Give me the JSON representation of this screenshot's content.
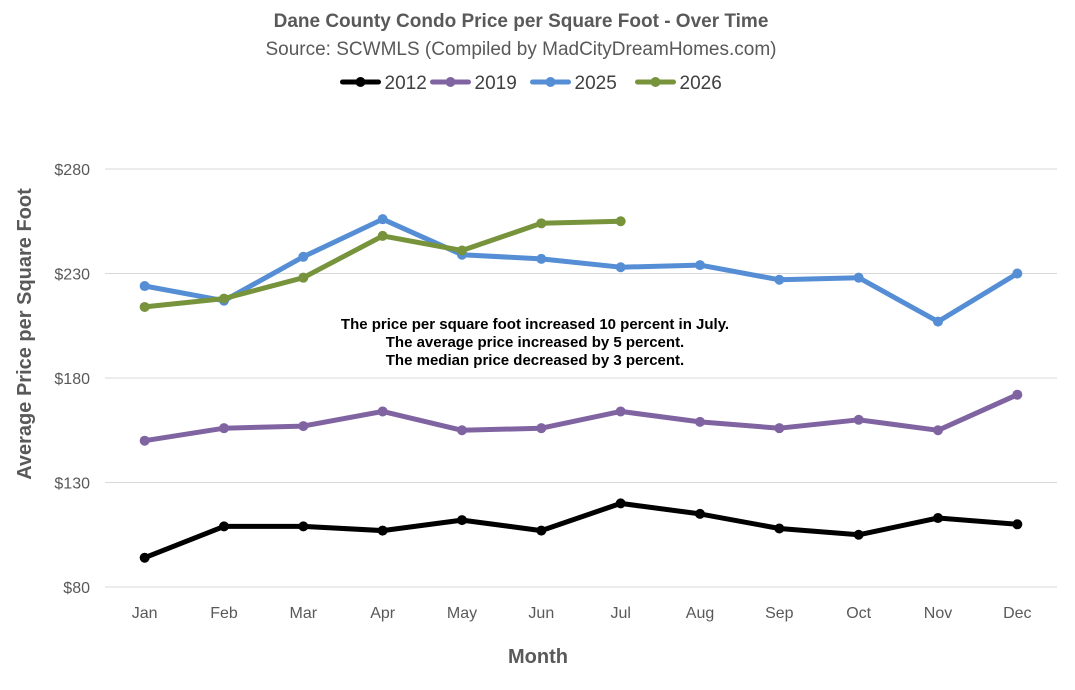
{
  "chart_data": {
    "type": "line",
    "title": "Dane County Condo Price per Square Foot - Over Time",
    "subtitle": "Source: SCWMLS (Compiled by MadCityDreamHomes.com)",
    "xlabel": "Month",
    "ylabel": "Average Price per Square Foot",
    "categories": [
      "Jan",
      "Feb",
      "Mar",
      "Apr",
      "May",
      "Jun",
      "Jul",
      "Aug",
      "Sep",
      "Oct",
      "Nov",
      "Dec"
    ],
    "ylim": [
      80,
      280
    ],
    "yticks": [
      80,
      130,
      180,
      230,
      280
    ],
    "ytick_labels": [
      "$80",
      "$130",
      "$180",
      "$230",
      "$280"
    ],
    "grid": true,
    "legend_position": "top",
    "series": [
      {
        "name": "2012",
        "color": "#000000",
        "values": [
          94,
          109,
          109,
          107,
          112,
          107,
          120,
          115,
          108,
          105,
          113,
          110
        ]
      },
      {
        "name": "2019",
        "color": "#8064a2",
        "values": [
          150,
          156,
          157,
          164,
          155,
          156,
          164,
          159,
          156,
          160,
          155,
          172
        ]
      },
      {
        "name": "2025",
        "color": "#558ed5",
        "values": [
          224,
          217,
          238,
          256,
          239,
          237,
          233,
          234,
          227,
          228,
          207,
          230
        ]
      },
      {
        "name": "2026",
        "color": "#77933c",
        "values": [
          214,
          218,
          228,
          248,
          241,
          254,
          255,
          null,
          null,
          null,
          null,
          null
        ]
      }
    ],
    "annotations": [
      "The price per square foot increased 10 percent in July.",
      "The average price increased by 5 percent.",
      "The median price decreased by 3 percent."
    ]
  }
}
